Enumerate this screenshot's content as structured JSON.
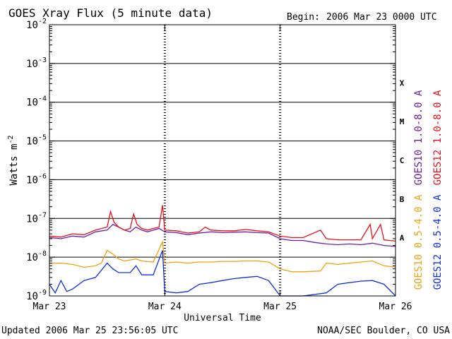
{
  "chart_data": {
    "type": "line",
    "title": "GOES Xray Flux (5 minute data)",
    "begin_label": "Begin:",
    "begin_value": "2006 Mar 23 0000 UTC",
    "xlabel": "Universal Time",
    "ylabel_base": "Watts m",
    "ylabel_exp": "-2",
    "x_ticks": [
      "Mar 23",
      "Mar 24",
      "Mar 25",
      "Mar 26"
    ],
    "xlim_days": [
      0,
      3
    ],
    "y_scale": "log",
    "ylim": [
      1e-09,
      0.01
    ],
    "y_tick_bases": [
      "10",
      "10",
      "10",
      "10",
      "10",
      "10",
      "10",
      "10"
    ],
    "y_tick_exps": [
      "-9",
      "-8",
      "-7",
      "-6",
      "-5",
      "-4",
      "-3",
      "-2"
    ],
    "flare_classes": [
      "A",
      "B",
      "C",
      "M",
      "X"
    ],
    "footer_left": "Updated 2006 Mar 25 23:56:05 UTC",
    "footer_right": "NOAA/SEC Boulder, CO USA",
    "series": [
      {
        "name": "GOES10 1.0-8.0 A",
        "color": "#6a1fa2",
        "points": [
          [
            0,
            3.2e-08
          ],
          [
            0.1,
            3e-08
          ],
          [
            0.2,
            3.5e-08
          ],
          [
            0.3,
            3.3e-08
          ],
          [
            0.4,
            4.5e-08
          ],
          [
            0.5,
            5e-08
          ],
          [
            0.55,
            7e-08
          ],
          [
            0.6,
            6e-08
          ],
          [
            0.65,
            5e-08
          ],
          [
            0.7,
            4.5e-08
          ],
          [
            0.75,
            6e-08
          ],
          [
            0.8,
            5e-08
          ],
          [
            0.85,
            4.5e-08
          ],
          [
            0.95,
            5.5e-08
          ],
          [
            1.0,
            4.5e-08
          ],
          [
            1.1,
            4.3e-08
          ],
          [
            1.2,
            3.8e-08
          ],
          [
            1.3,
            4.2e-08
          ],
          [
            1.4,
            4.5e-08
          ],
          [
            1.5,
            4.3e-08
          ],
          [
            1.6,
            4.4e-08
          ],
          [
            1.7,
            4.5e-08
          ],
          [
            1.8,
            4.3e-08
          ],
          [
            1.9,
            4.2e-08
          ],
          [
            2.0,
            3e-08
          ],
          [
            2.1,
            2.7e-08
          ],
          [
            2.2,
            2.7e-08
          ],
          [
            2.3,
            2.4e-08
          ],
          [
            2.4,
            2.2e-08
          ],
          [
            2.5,
            2.1e-08
          ],
          [
            2.6,
            2.2e-08
          ],
          [
            2.7,
            2.1e-08
          ],
          [
            2.8,
            2.3e-08
          ],
          [
            2.9,
            2e-08
          ],
          [
            3.0,
            1.9e-08
          ]
        ]
      },
      {
        "name": "GOES12 1.0-8.0 A",
        "color": "#e8101a",
        "points": [
          [
            0,
            3.5e-08
          ],
          [
            0.1,
            3.3e-08
          ],
          [
            0.2,
            4e-08
          ],
          [
            0.3,
            3.8e-08
          ],
          [
            0.4,
            5e-08
          ],
          [
            0.5,
            6e-08
          ],
          [
            0.53,
            1.5e-07
          ],
          [
            0.56,
            8e-08
          ],
          [
            0.6,
            6e-08
          ],
          [
            0.65,
            5e-08
          ],
          [
            0.7,
            5.5e-08
          ],
          [
            0.73,
            1.3e-07
          ],
          [
            0.76,
            7e-08
          ],
          [
            0.8,
            5.5e-08
          ],
          [
            0.85,
            5e-08
          ],
          [
            0.9,
            5.5e-08
          ],
          [
            0.95,
            6e-08
          ],
          [
            0.98,
            2.2e-07
          ],
          [
            1.0,
            5e-08
          ],
          [
            1.1,
            4.8e-08
          ],
          [
            1.2,
            4.2e-08
          ],
          [
            1.3,
            4.5e-08
          ],
          [
            1.35,
            6e-08
          ],
          [
            1.4,
            5e-08
          ],
          [
            1.5,
            4.8e-08
          ],
          [
            1.6,
            4.8e-08
          ],
          [
            1.7,
            5.2e-08
          ],
          [
            1.8,
            4.8e-08
          ],
          [
            1.9,
            4.5e-08
          ],
          [
            2.0,
            3.5e-08
          ],
          [
            2.1,
            3.2e-08
          ],
          [
            2.2,
            3.2e-08
          ],
          [
            2.35,
            5e-08
          ],
          [
            2.4,
            3e-08
          ],
          [
            2.5,
            2.8e-08
          ],
          [
            2.6,
            2.8e-08
          ],
          [
            2.7,
            2.8e-08
          ],
          [
            2.78,
            7e-08
          ],
          [
            2.8,
            3e-08
          ],
          [
            2.87,
            7e-08
          ],
          [
            2.9,
            2.8e-08
          ],
          [
            3.0,
            2.6e-08
          ]
        ]
      },
      {
        "name": "GOES10 0.5-4.0 A",
        "color": "#f0a010",
        "points": [
          [
            0,
            7e-09
          ],
          [
            0.1,
            7e-09
          ],
          [
            0.2,
            6.5e-09
          ],
          [
            0.3,
            5.5e-09
          ],
          [
            0.4,
            6e-09
          ],
          [
            0.45,
            7e-09
          ],
          [
            0.5,
            1.5e-08
          ],
          [
            0.55,
            1.2e-08
          ],
          [
            0.6,
            9e-09
          ],
          [
            0.65,
            8e-09
          ],
          [
            0.75,
            9e-09
          ],
          [
            0.8,
            8e-09
          ],
          [
            0.9,
            7.5e-09
          ],
          [
            0.98,
            2.5e-08
          ],
          [
            1.0,
            7e-09
          ],
          [
            1.1,
            7.5e-09
          ],
          [
            1.2,
            7e-09
          ],
          [
            1.3,
            7.5e-09
          ],
          [
            1.4,
            7.5e-09
          ],
          [
            1.5,
            7.8e-09
          ],
          [
            1.6,
            7.8e-09
          ],
          [
            1.7,
            8e-09
          ],
          [
            1.8,
            8e-09
          ],
          [
            1.9,
            7.5e-09
          ],
          [
            2.0,
            5e-09
          ],
          [
            2.1,
            4.2e-09
          ],
          [
            2.2,
            4.2e-09
          ],
          [
            2.35,
            4.4e-09
          ],
          [
            2.4,
            7e-09
          ],
          [
            2.5,
            6.5e-09
          ],
          [
            2.6,
            7e-09
          ],
          [
            2.7,
            7.5e-09
          ],
          [
            2.8,
            8e-09
          ],
          [
            2.9,
            6e-09
          ],
          [
            3.0,
            5.5e-09
          ]
        ]
      },
      {
        "name": "GOES12 0.5-4.0 A",
        "color": "#1030e0",
        "points": [
          [
            0,
            2e-09
          ],
          [
            0.05,
            1.2e-09
          ],
          [
            0.1,
            2.5e-09
          ],
          [
            0.15,
            1.3e-09
          ],
          [
            0.2,
            1.5e-09
          ],
          [
            0.3,
            2.5e-09
          ],
          [
            0.4,
            3e-09
          ],
          [
            0.5,
            7e-09
          ],
          [
            0.55,
            5e-09
          ],
          [
            0.6,
            4e-09
          ],
          [
            0.7,
            4e-09
          ],
          [
            0.75,
            6e-09
          ],
          [
            0.8,
            3.5e-09
          ],
          [
            0.9,
            3.5e-09
          ],
          [
            0.98,
            1.5e-08
          ],
          [
            1.0,
            1.3e-09
          ],
          [
            1.1,
            1.2e-09
          ],
          [
            1.2,
            1.3e-09
          ],
          [
            1.3,
            2e-09
          ],
          [
            1.4,
            2.2e-09
          ],
          [
            1.5,
            2.5e-09
          ],
          [
            1.6,
            2.8e-09
          ],
          [
            1.7,
            3e-09
          ],
          [
            1.8,
            3.2e-09
          ],
          [
            1.9,
            2.5e-09
          ],
          [
            2.0,
            1e-09
          ],
          [
            2.2,
            1e-09
          ],
          [
            2.4,
            1.2e-09
          ],
          [
            2.5,
            2e-09
          ],
          [
            2.6,
            2.2e-09
          ],
          [
            2.7,
            2.4e-09
          ],
          [
            2.8,
            2.5e-09
          ],
          [
            2.9,
            2e-09
          ],
          [
            3.0,
            1e-09
          ]
        ]
      }
    ]
  }
}
